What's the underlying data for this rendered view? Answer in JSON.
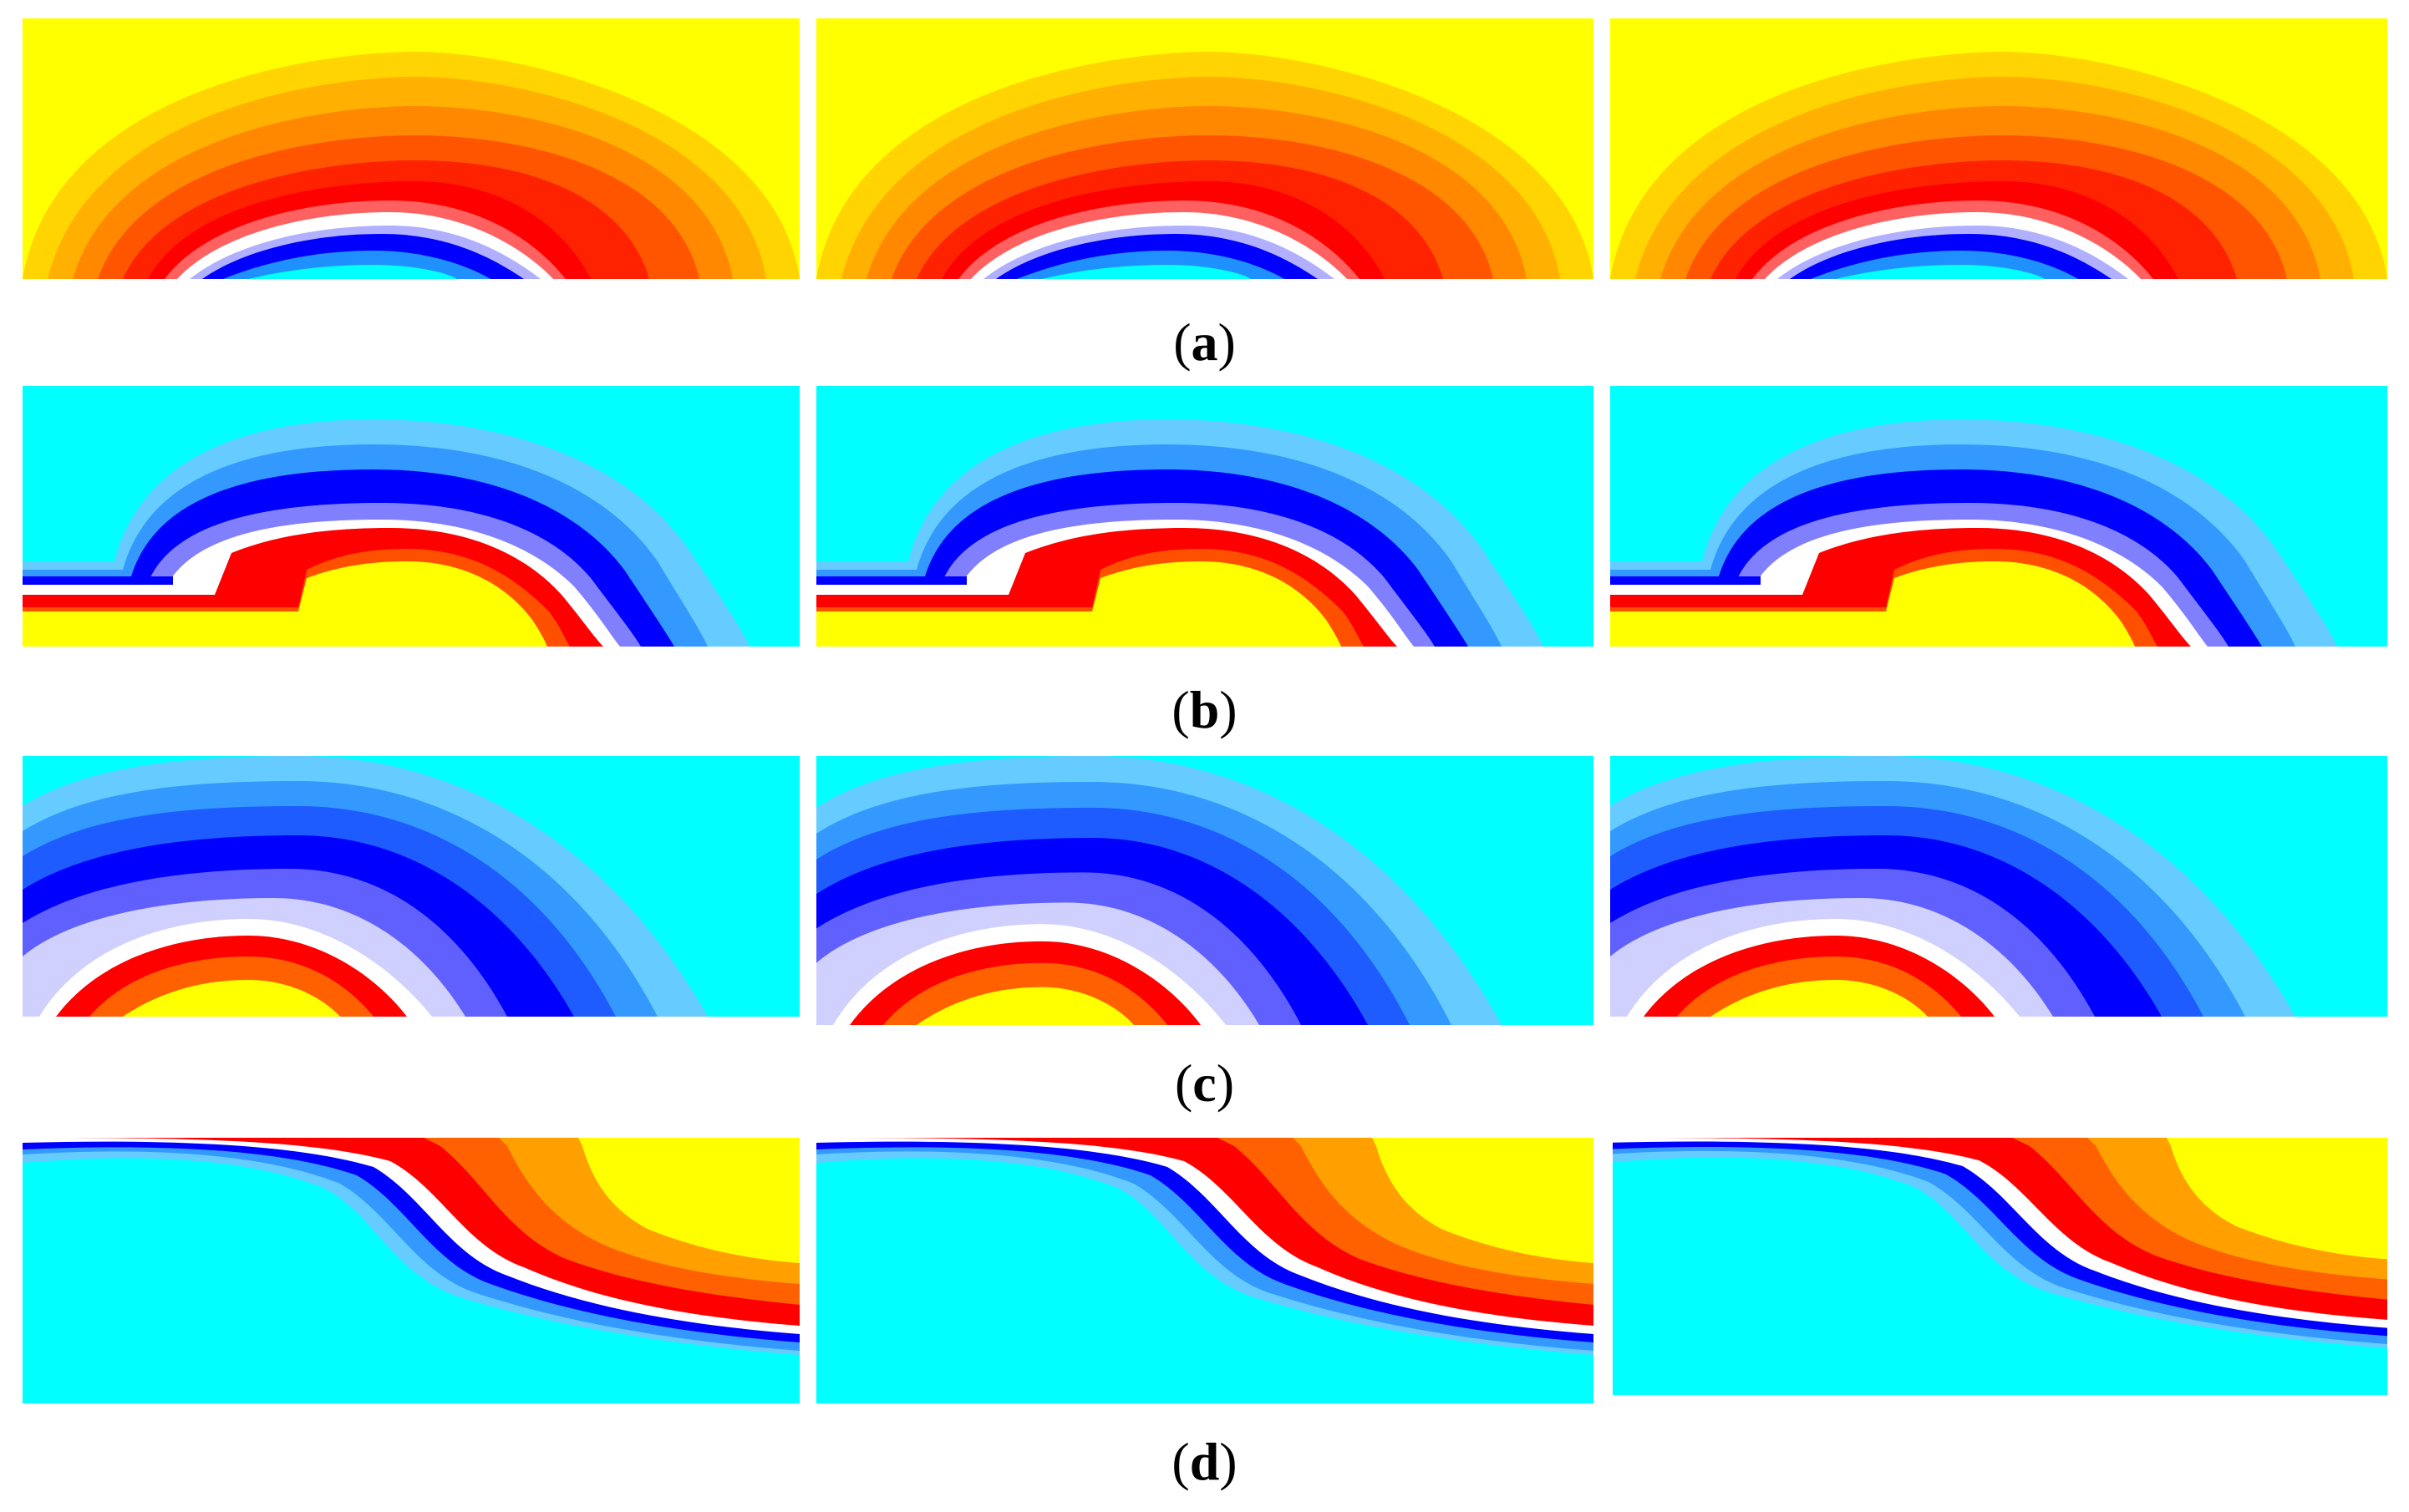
{
  "figure": {
    "rows": [
      {
        "label": "a",
        "panels": 3
      },
      {
        "label": "b",
        "panels": 3
      },
      {
        "label": "c",
        "panels": 3
      },
      {
        "label": "d",
        "panels": 3
      }
    ]
  },
  "colors": {
    "yellow": "#ffff00",
    "orange": "#ff8c00",
    "red": "#ff0000",
    "white": "#ffffff",
    "blue": "#0000ff",
    "cyan": "#00ffff"
  }
}
